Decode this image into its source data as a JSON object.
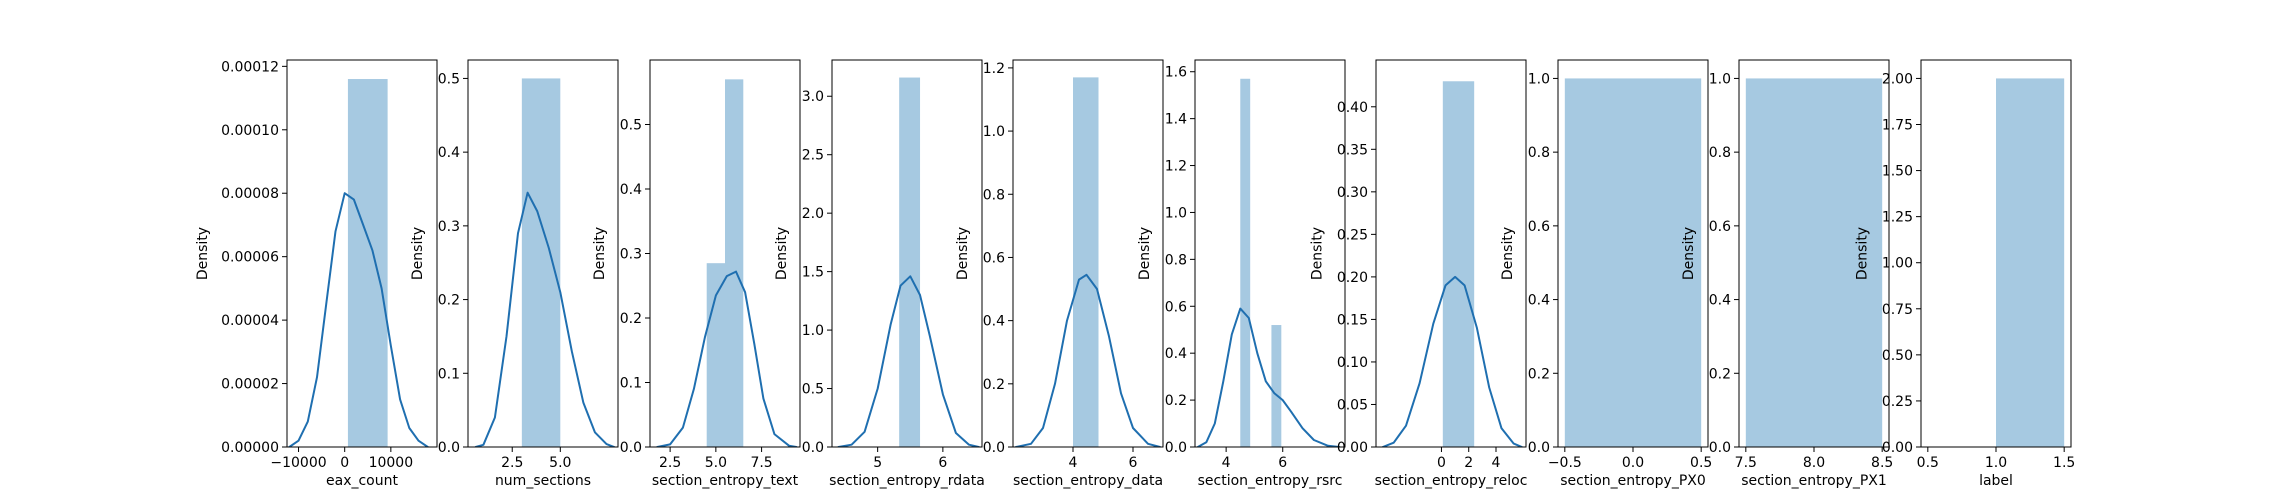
{
  "chart_data": [
    {
      "type": "bar",
      "xlabel": "eax_count",
      "ylabel": "Density",
      "xlim": [
        -12500,
        20000
      ],
      "ylim": [
        0,
        0.000122
      ],
      "xticks": [
        {
          "v": -10000,
          "t": "−10000"
        },
        {
          "v": 0,
          "t": "0"
        },
        {
          "v": 10000,
          "t": "10000"
        }
      ],
      "yticks": [
        {
          "v": 0,
          "t": "0.00000"
        },
        {
          "v": 2e-05,
          "t": "0.00002"
        },
        {
          "v": 4e-05,
          "t": "0.00004"
        },
        {
          "v": 6e-05,
          "t": "0.00006"
        },
        {
          "v": 8e-05,
          "t": "0.00008"
        },
        {
          "v": 0.0001,
          "t": "0.00010"
        },
        {
          "v": 0.00012,
          "t": "0.00012"
        }
      ],
      "bars": [
        {
          "x0": 700,
          "x1": 9300,
          "h": 0.000116
        }
      ],
      "kde": [
        [
          -12000,
          0
        ],
        [
          -10000,
          2e-06
        ],
        [
          -8000,
          8e-06
        ],
        [
          -6000,
          2.2e-05
        ],
        [
          -4000,
          4.5e-05
        ],
        [
          -2000,
          6.8e-05
        ],
        [
          0,
          8e-05
        ],
        [
          2000,
          7.8e-05
        ],
        [
          4000,
          7e-05
        ],
        [
          6000,
          6.2e-05
        ],
        [
          8000,
          5e-05
        ],
        [
          10000,
          3.2e-05
        ],
        [
          12000,
          1.5e-05
        ],
        [
          14000,
          6e-06
        ],
        [
          16000,
          2e-06
        ],
        [
          18000,
          0
        ]
      ]
    },
    {
      "type": "bar",
      "xlabel": "num_sections",
      "ylabel": "Density",
      "xlim": [
        0.2,
        8.0
      ],
      "ylim": [
        0,
        0.525
      ],
      "xticks": [
        {
          "v": 2.5,
          "t": "2.5"
        },
        {
          "v": 5.0,
          "t": "5.0"
        }
      ],
      "yticks": [
        {
          "v": 0,
          "t": "0.0"
        },
        {
          "v": 0.1,
          "t": "0.1"
        },
        {
          "v": 0.2,
          "t": "0.2"
        },
        {
          "v": 0.3,
          "t": "0.3"
        },
        {
          "v": 0.4,
          "t": "0.4"
        },
        {
          "v": 0.5,
          "t": "0.5"
        }
      ],
      "bars": [
        {
          "x0": 3.0,
          "x1": 5.0,
          "h": 0.5
        }
      ],
      "kde": [
        [
          0.6,
          0
        ],
        [
          1.0,
          0.003
        ],
        [
          1.6,
          0.04
        ],
        [
          2.2,
          0.15
        ],
        [
          2.8,
          0.29
        ],
        [
          3.3,
          0.345
        ],
        [
          3.8,
          0.32
        ],
        [
          4.4,
          0.27
        ],
        [
          5.0,
          0.21
        ],
        [
          5.6,
          0.13
        ],
        [
          6.2,
          0.06
        ],
        [
          6.8,
          0.02
        ],
        [
          7.4,
          0.004
        ],
        [
          7.8,
          0
        ]
      ]
    },
    {
      "type": "bar",
      "xlabel": "section_entropy_text",
      "ylabel": "Density",
      "xlim": [
        1.4,
        9.6
      ],
      "ylim": [
        0,
        0.6
      ],
      "xticks": [
        {
          "v": 2.5,
          "t": "2.5"
        },
        {
          "v": 5.0,
          "t": "5.0"
        },
        {
          "v": 7.5,
          "t": "7.5"
        }
      ],
      "yticks": [
        {
          "v": 0,
          "t": "0.0"
        },
        {
          "v": 0.1,
          "t": "0.1"
        },
        {
          "v": 0.2,
          "t": "0.2"
        },
        {
          "v": 0.3,
          "t": "0.3"
        },
        {
          "v": 0.4,
          "t": "0.4"
        },
        {
          "v": 0.5,
          "t": "0.5"
        }
      ],
      "bars": [
        {
          "x0": 4.5,
          "x1": 5.5,
          "h": 0.285
        },
        {
          "x0": 5.5,
          "x1": 6.5,
          "h": 0.57
        }
      ],
      "kde": [
        [
          1.8,
          0
        ],
        [
          2.5,
          0.004
        ],
        [
          3.2,
          0.03
        ],
        [
          3.8,
          0.09
        ],
        [
          4.4,
          0.17
        ],
        [
          5.0,
          0.235
        ],
        [
          5.6,
          0.265
        ],
        [
          6.1,
          0.272
        ],
        [
          6.6,
          0.24
        ],
        [
          7.1,
          0.16
        ],
        [
          7.6,
          0.075
        ],
        [
          8.2,
          0.02
        ],
        [
          9.0,
          0.002
        ],
        [
          9.4,
          0
        ]
      ]
    },
    {
      "type": "bar",
      "xlabel": "section_entropy_rdata",
      "ylabel": "Density",
      "xlim": [
        4.3,
        6.6
      ],
      "ylim": [
        0,
        3.31
      ],
      "xticks": [
        {
          "v": 5,
          "t": "5"
        },
        {
          "v": 6,
          "t": "6"
        }
      ],
      "yticks": [
        {
          "v": 0,
          "t": "0.0"
        },
        {
          "v": 0.5,
          "t": "0.5"
        },
        {
          "v": 1.0,
          "t": "1.0"
        },
        {
          "v": 1.5,
          "t": "1.5"
        },
        {
          "v": 2.0,
          "t": "2.0"
        },
        {
          "v": 2.5,
          "t": "2.5"
        },
        {
          "v": 3.0,
          "t": "3.0"
        }
      ],
      "bars": [
        {
          "x0": 5.33,
          "x1": 5.65,
          "h": 3.16
        }
      ],
      "kde": [
        [
          4.4,
          0
        ],
        [
          4.6,
          0.02
        ],
        [
          4.8,
          0.13
        ],
        [
          5.0,
          0.5
        ],
        [
          5.2,
          1.05
        ],
        [
          5.35,
          1.38
        ],
        [
          5.5,
          1.46
        ],
        [
          5.65,
          1.3
        ],
        [
          5.8,
          0.95
        ],
        [
          6.0,
          0.45
        ],
        [
          6.2,
          0.12
        ],
        [
          6.4,
          0.02
        ],
        [
          6.55,
          0
        ]
      ]
    },
    {
      "type": "bar",
      "xlabel": "section_entropy_data",
      "ylabel": "Density",
      "xlim": [
        2.0,
        7.0
      ],
      "ylim": [
        0,
        1.225
      ],
      "xticks": [
        {
          "v": 4,
          "t": "4"
        },
        {
          "v": 6,
          "t": "6"
        }
      ],
      "yticks": [
        {
          "v": 0,
          "t": "0.0"
        },
        {
          "v": 0.2,
          "t": "0.2"
        },
        {
          "v": 0.4,
          "t": "0.4"
        },
        {
          "v": 0.6,
          "t": "0.6"
        },
        {
          "v": 0.8,
          "t": "0.8"
        },
        {
          "v": 1.0,
          "t": "1.0"
        },
        {
          "v": 1.2,
          "t": "1.2"
        }
      ],
      "bars": [
        {
          "x0": 4.0,
          "x1": 4.85,
          "h": 1.17
        }
      ],
      "kde": [
        [
          2.1,
          0
        ],
        [
          2.6,
          0.01
        ],
        [
          3.0,
          0.06
        ],
        [
          3.4,
          0.2
        ],
        [
          3.8,
          0.4
        ],
        [
          4.2,
          0.53
        ],
        [
          4.45,
          0.545
        ],
        [
          4.8,
          0.5
        ],
        [
          5.2,
          0.35
        ],
        [
          5.6,
          0.17
        ],
        [
          6.0,
          0.06
        ],
        [
          6.5,
          0.01
        ],
        [
          6.9,
          0
        ]
      ]
    },
    {
      "type": "bar",
      "xlabel": "section_entropy_rsrc",
      "ylabel": "Density",
      "xlim": [
        2.9,
        8.2
      ],
      "ylim": [
        0,
        1.65
      ],
      "xticks": [
        {
          "v": 4,
          "t": "4"
        },
        {
          "v": 6,
          "t": "6"
        }
      ],
      "yticks": [
        {
          "v": 0,
          "t": "0.0"
        },
        {
          "v": 0.2,
          "t": "0.2"
        },
        {
          "v": 0.4,
          "t": "0.4"
        },
        {
          "v": 0.6,
          "t": "0.6"
        },
        {
          "v": 0.8,
          "t": "0.8"
        },
        {
          "v": 1.0,
          "t": "1.0"
        },
        {
          "v": 1.2,
          "t": "1.2"
        },
        {
          "v": 1.4,
          "t": "1.4"
        },
        {
          "v": 1.6,
          "t": "1.6"
        }
      ],
      "bars": [
        {
          "x0": 4.5,
          "x1": 4.85,
          "h": 1.57
        },
        {
          "x0": 5.6,
          "x1": 5.95,
          "h": 0.52
        }
      ],
      "kde": [
        [
          3.0,
          0
        ],
        [
          3.3,
          0.02
        ],
        [
          3.6,
          0.1
        ],
        [
          3.9,
          0.28
        ],
        [
          4.2,
          0.48
        ],
        [
          4.5,
          0.59
        ],
        [
          4.8,
          0.55
        ],
        [
          5.1,
          0.4
        ],
        [
          5.4,
          0.28
        ],
        [
          5.7,
          0.23
        ],
        [
          6.0,
          0.2
        ],
        [
          6.3,
          0.15
        ],
        [
          6.7,
          0.08
        ],
        [
          7.1,
          0.03
        ],
        [
          7.6,
          0.005
        ],
        [
          8.0,
          0
        ]
      ]
    },
    {
      "type": "bar",
      "xlabel": "section_entropy_reloc",
      "ylabel": "Density",
      "xlim": [
        -4.8,
        6.2
      ],
      "ylim": [
        0,
        0.455
      ],
      "xticks": [
        {
          "v": 0,
          "t": "0"
        },
        {
          "v": 2,
          "t": "2"
        },
        {
          "v": 4,
          "t": "4"
        }
      ],
      "yticks": [
        {
          "v": 0,
          "t": "0.00"
        },
        {
          "v": 0.05,
          "t": "0.05"
        },
        {
          "v": 0.1,
          "t": "0.10"
        },
        {
          "v": 0.15,
          "t": "0.15"
        },
        {
          "v": 0.2,
          "t": "0.20"
        },
        {
          "v": 0.25,
          "t": "0.25"
        },
        {
          "v": 0.3,
          "t": "0.30"
        },
        {
          "v": 0.35,
          "t": "0.35"
        },
        {
          "v": 0.4,
          "t": "0.40"
        }
      ],
      "bars": [
        {
          "x0": 0.1,
          "x1": 2.4,
          "h": 0.43
        }
      ],
      "kde": [
        [
          -4.3,
          0
        ],
        [
          -3.5,
          0.005
        ],
        [
          -2.6,
          0.025
        ],
        [
          -1.6,
          0.075
        ],
        [
          -0.6,
          0.145
        ],
        [
          0.3,
          0.19
        ],
        [
          1.0,
          0.2
        ],
        [
          1.7,
          0.19
        ],
        [
          2.6,
          0.14
        ],
        [
          3.5,
          0.07
        ],
        [
          4.4,
          0.022
        ],
        [
          5.3,
          0.004
        ],
        [
          5.9,
          0
        ]
      ]
    },
    {
      "type": "bar",
      "xlabel": "section_entropy_PX0",
      "ylabel": "Density",
      "xlim": [
        -0.55,
        0.55
      ],
      "ylim": [
        0,
        1.05
      ],
      "xticks": [
        {
          "v": -0.5,
          "t": "−0.5"
        },
        {
          "v": 0,
          "t": "0.0"
        },
        {
          "v": 0.5,
          "t": "0.5"
        }
      ],
      "yticks": [
        {
          "v": 0,
          "t": "0.0"
        },
        {
          "v": 0.2,
          "t": "0.2"
        },
        {
          "v": 0.4,
          "t": "0.4"
        },
        {
          "v": 0.6,
          "t": "0.6"
        },
        {
          "v": 0.8,
          "t": "0.8"
        },
        {
          "v": 1.0,
          "t": "1.0"
        }
      ],
      "bars": [
        {
          "x0": -0.5,
          "x1": 0.5,
          "h": 1.0
        }
      ],
      "kde": []
    },
    {
      "type": "bar",
      "xlabel": "section_entropy_PX1",
      "ylabel": "Density",
      "xlim": [
        7.45,
        8.55
      ],
      "ylim": [
        0,
        1.05
      ],
      "xticks": [
        {
          "v": 7.5,
          "t": "7.5"
        },
        {
          "v": 8.0,
          "t": "8.0"
        },
        {
          "v": 8.5,
          "t": "8.5"
        }
      ],
      "yticks": [
        {
          "v": 0,
          "t": "0.0"
        },
        {
          "v": 0.2,
          "t": "0.2"
        },
        {
          "v": 0.4,
          "t": "0.4"
        },
        {
          "v": 0.6,
          "t": "0.6"
        },
        {
          "v": 0.8,
          "t": "0.8"
        },
        {
          "v": 1.0,
          "t": "1.0"
        }
      ],
      "bars": [
        {
          "x0": 7.5,
          "x1": 8.5,
          "h": 1.0
        }
      ],
      "kde": []
    },
    {
      "type": "bar",
      "xlabel": "label",
      "ylabel": "Density",
      "xlim": [
        0.45,
        1.55
      ],
      "ylim": [
        0,
        2.1
      ],
      "xticks": [
        {
          "v": 0.5,
          "t": "0.5"
        },
        {
          "v": 1.0,
          "t": "1.0"
        },
        {
          "v": 1.5,
          "t": "1.5"
        }
      ],
      "yticks": [
        {
          "v": 0,
          "t": "0.00"
        },
        {
          "v": 0.25,
          "t": "0.25"
        },
        {
          "v": 0.5,
          "t": "0.50"
        },
        {
          "v": 0.75,
          "t": "0.75"
        },
        {
          "v": 1.0,
          "t": "1.00"
        },
        {
          "v": 1.25,
          "t": "1.25"
        },
        {
          "v": 1.5,
          "t": "1.50"
        },
        {
          "v": 1.75,
          "t": "1.75"
        },
        {
          "v": 2.0,
          "t": "2.00"
        }
      ],
      "bars": [
        {
          "x0": 1.0,
          "x1": 1.5,
          "h": 2.0
        }
      ],
      "kde": []
    }
  ],
  "style": {
    "bar_color": "#a6c9e1",
    "line_color": "#1f6fb0",
    "axis_color": "#000000"
  }
}
